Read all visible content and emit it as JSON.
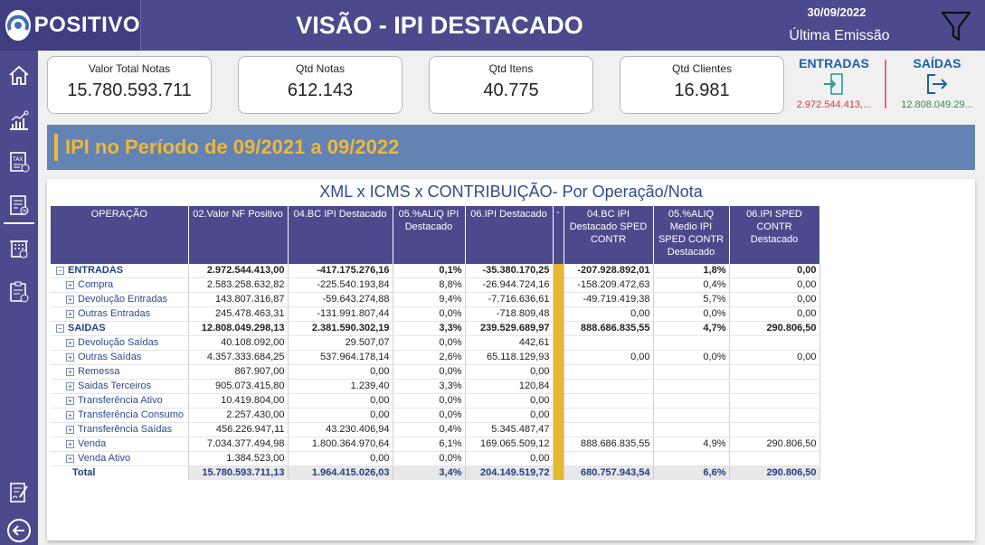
{
  "header": {
    "brand": "POSITIVO",
    "title": "VISÃO - IPI DESTACADO",
    "date": "30/09/2022",
    "last_emission": "Última Emissão",
    "filter_icon": "filter-icon"
  },
  "sidebar": {
    "items": [
      {
        "name": "home-icon"
      },
      {
        "name": "chart-icon"
      },
      {
        "name": "tax-icon"
      },
      {
        "name": "tax-report-icon"
      },
      {
        "name": "building-icon"
      },
      {
        "name": "clipboard-icon"
      },
      {
        "name": "document-sign-icon"
      },
      {
        "name": "back-icon"
      }
    ]
  },
  "kpis": [
    {
      "label": "Valor Total Notas",
      "value": "15.780.593.711"
    },
    {
      "label": "Qtd Notas",
      "value": "612.143"
    },
    {
      "label": "Qtd Itens",
      "value": "40.775"
    },
    {
      "label": "Qtd Clientes",
      "value": "16.981"
    }
  ],
  "entradas": {
    "label": "ENTRADAS",
    "value": "2.972.544.413,..."
  },
  "saidas": {
    "label": "SAÍDAS",
    "value": "12.808.049.29..."
  },
  "banner": {
    "text": "IPI no Período de 09/2021 a 09/2022"
  },
  "table": {
    "title": "XML x ICMS x CONTRIBUIÇÃO- Por Operação/Nota",
    "columns": [
      "OPERAÇÃO",
      "02.Valor NF Positivo",
      "04.BC IPI Destacado",
      "05.%ALIQ IPI Destacado",
      "06.IPI Destacado",
      "-",
      "04.BC IPI Destacado SPED CONTR",
      "05.%ALIQ Medio IPI SPED CONTR Destacado",
      "06.IPI SPED CONTR Destacado"
    ],
    "rows": [
      {
        "type": "group",
        "expander": "−",
        "op": "ENTRADAS",
        "c": [
          "2.972.544.413,00",
          "-417.175.276,16",
          "0,1%",
          "-35.380.170,25",
          "-207.928.892,01",
          "1,8%",
          "0,00"
        ]
      },
      {
        "type": "child",
        "expander": "+",
        "op": "Compra",
        "c": [
          "2.583.258.632,82",
          "-225.540.193,84",
          "8,8%",
          "-26.944.724,16",
          "-158.209.472,63",
          "0,4%",
          "0,00"
        ]
      },
      {
        "type": "child",
        "expander": "+",
        "op": "Devolução Entradas",
        "c": [
          "143.807.316,87",
          "-59.643.274,88",
          "9,4%",
          "-7.716.636,61",
          "-49.719.419,38",
          "5,7%",
          "0,00"
        ]
      },
      {
        "type": "child",
        "expander": "+",
        "op": "Outras Entradas",
        "c": [
          "245.478.463,31",
          "-131.991.807,44",
          "0,0%",
          "-718.809,48",
          "0,00",
          "0,0%",
          "0,00"
        ]
      },
      {
        "type": "group",
        "expander": "−",
        "op": "SAIDAS",
        "c": [
          "12.808.049.298,13",
          "2.381.590.302,19",
          "3,3%",
          "239.529.689,97",
          "888.686.835,55",
          "4,7%",
          "290.806,50"
        ]
      },
      {
        "type": "child",
        "expander": "+",
        "op": "Devolução Saídas",
        "c": [
          "40.108.092,00",
          "29.507,07",
          "0,0%",
          "442,61",
          "",
          "",
          ""
        ]
      },
      {
        "type": "child",
        "expander": "+",
        "op": "Outras Saídas",
        "c": [
          "4.357.333.684,25",
          "537.964.178,14",
          "2,6%",
          "65.118.129,93",
          "0,00",
          "0,0%",
          "0,00"
        ]
      },
      {
        "type": "child",
        "expander": "+",
        "op": "Remessa",
        "c": [
          "867.907,00",
          "0,00",
          "0,0%",
          "0,00",
          "",
          "",
          ""
        ]
      },
      {
        "type": "child",
        "expander": "+",
        "op": "Saidas Terceiros",
        "c": [
          "905.073.415,80",
          "1.239,40",
          "3,3%",
          "120,84",
          "",
          "",
          ""
        ]
      },
      {
        "type": "child",
        "expander": "+",
        "op": "Transferência Ativo",
        "c": [
          "10.419.804,00",
          "0,00",
          "0,0%",
          "0,00",
          "",
          "",
          ""
        ]
      },
      {
        "type": "child",
        "expander": "+",
        "op": "Transferência Consumo",
        "c": [
          "2.257.430,00",
          "0,00",
          "0,0%",
          "0,00",
          "",
          "",
          ""
        ]
      },
      {
        "type": "child",
        "expander": "+",
        "op": "Transferência Saídas",
        "c": [
          "456.226.947,11",
          "43.230.406,94",
          "0,4%",
          "5.345.487,47",
          "",
          "",
          ""
        ]
      },
      {
        "type": "child",
        "expander": "+",
        "op": "Venda",
        "c": [
          "7.034.377.494,98",
          "1.800.364.970,64",
          "6,1%",
          "169.065.509,12",
          "888.686.835,55",
          "4,9%",
          "290.806,50"
        ]
      },
      {
        "type": "child",
        "expander": "+",
        "op": "Venda Ativo",
        "c": [
          "1.384.523,00",
          "0,00",
          "0,0%",
          "0,00",
          "",
          "",
          ""
        ]
      },
      {
        "type": "total",
        "expander": "",
        "op": "Total",
        "c": [
          "15.780.593.711,13",
          "1.964.415.026,03",
          "3,4%",
          "204.149.519,72",
          "680.757.943,54",
          "6,6%",
          "290.806,50"
        ]
      }
    ]
  }
}
